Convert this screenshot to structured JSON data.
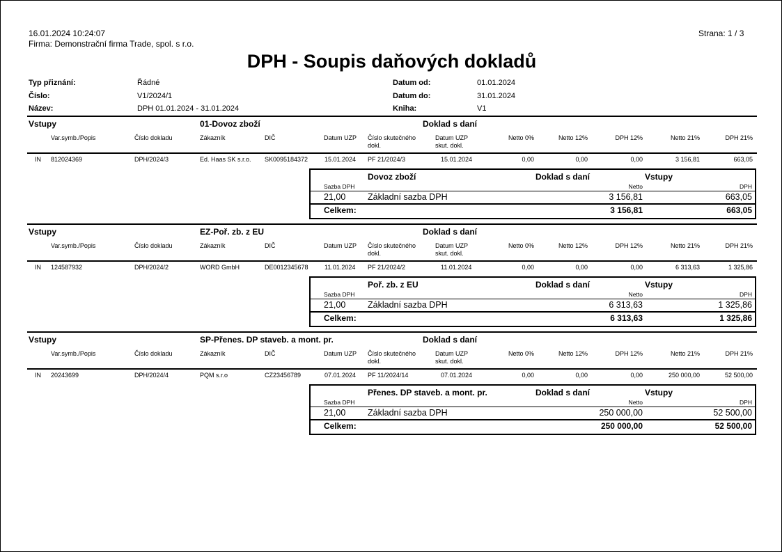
{
  "header": {
    "datetime": "16.01.2024  10:24:07",
    "company": "Firma: Demonstrační firma Trade, spol. s r.o.",
    "page": "Strana: 1 / 3",
    "title": "DPH - Soupis daňových dokladů"
  },
  "info": {
    "left": [
      {
        "label": "Typ přiznání:",
        "value": "Řádné"
      },
      {
        "label": "Číslo:",
        "value": "V1/2024/1"
      },
      {
        "label": "Název:",
        "value": "DPH 01.01.2024 - 31.01.2024"
      }
    ],
    "right": [
      {
        "label": "Datum od:",
        "value": "01.01.2024"
      },
      {
        "label": "Datum do:",
        "value": "31.01.2024"
      },
      {
        "label": "Kniha:",
        "value": "V1"
      }
    ]
  },
  "columns": {
    "var_symb": "Var.symb./Popis",
    "cislo_dokladu": "Číslo dokladu",
    "zakaznik": "Zákazník",
    "dic": "DIČ",
    "datum_uzp": "Datum UZP",
    "cislo_skut_1": "Číslo skutečného",
    "cislo_skut_2": "dokl.",
    "datum_skut_1": "Datum UZP",
    "datum_skut_2": "skut. dokl.",
    "netto0": "Netto 0%",
    "netto12": "Netto 12%",
    "dph12": "DPH 12%",
    "netto21": "Netto 21%",
    "dph21": "DPH 21%"
  },
  "summary_labels": {
    "sazba": "Sazba DPH",
    "netto": "Netto",
    "dph": "DPH",
    "celkem": "Celkem:"
  },
  "sections": [
    {
      "kind": "Vstupy",
      "code": "01-Dovoz zboží",
      "doc_type": "Doklad s daní",
      "row": {
        "type": "IN",
        "var_symb": "812024369",
        "cislo_dokladu": "DPH/2024/3",
        "zakaznik": "Ed. Haas SK s.r.o.",
        "dic": "SK0095184372",
        "datum_uzp": "15.01.2024",
        "cislo_skut": "PF 21/2024/3",
        "datum_skut": "15.01.2024",
        "netto0": "0,00",
        "netto12": "0,00",
        "dph12": "0,00",
        "netto21": "3 156,81",
        "dph21": "663,05"
      },
      "summary": {
        "name": "Dovoz zboží",
        "doc_type": "Doklad s daní",
        "kind": "Vstupy",
        "rate": "21,00",
        "rate_name": "Základní sazba DPH",
        "netto": "3 156,81",
        "dph": "663,05",
        "total_netto": "3 156,81",
        "total_dph": "663,05"
      }
    },
    {
      "kind": "Vstupy",
      "code": "EZ-Poř. zb. z EU",
      "doc_type": "Doklad s daní",
      "row": {
        "type": "IN",
        "var_symb": "124587932",
        "cislo_dokladu": "DPH/2024/2",
        "zakaznik": "WORD GmbH",
        "dic": "DE0012345678",
        "datum_uzp": "11.01.2024",
        "cislo_skut": "PF 21/2024/2",
        "datum_skut": "11.01.2024",
        "netto0": "0,00",
        "netto12": "0,00",
        "dph12": "0,00",
        "netto21": "6 313,63",
        "dph21": "1 325,86"
      },
      "summary": {
        "name": "Poř. zb. z EU",
        "doc_type": "Doklad s daní",
        "kind": "Vstupy",
        "rate": "21,00",
        "rate_name": "Základní sazba DPH",
        "netto": "6 313,63",
        "dph": "1 325,86",
        "total_netto": "6 313,63",
        "total_dph": "1 325,86"
      }
    },
    {
      "kind": "Vstupy",
      "code": "SP-Přenes. DP staveb. a mont. pr.",
      "doc_type": "Doklad s daní",
      "row": {
        "type": "IN",
        "var_symb": "20243699",
        "cislo_dokladu": "DPH/2024/4",
        "zakaznik": "PQM s.r.o",
        "dic": "CZ23456789",
        "datum_uzp": "07.01.2024",
        "cislo_skut": "PF 11/2024/14",
        "datum_skut": "07.01.2024",
        "netto0": "0,00",
        "netto12": "0,00",
        "dph12": "0,00",
        "netto21": "250 000,00",
        "dph21": "52 500,00"
      },
      "summary": {
        "name": "Přenes. DP staveb. a mont. pr.",
        "doc_type": "Doklad s daní",
        "kind": "Vstupy",
        "rate": "21,00",
        "rate_name": "Základní sazba DPH",
        "netto": "250 000,00",
        "dph": "52 500,00",
        "total_netto": "250 000,00",
        "total_dph": "52 500,00"
      }
    }
  ]
}
